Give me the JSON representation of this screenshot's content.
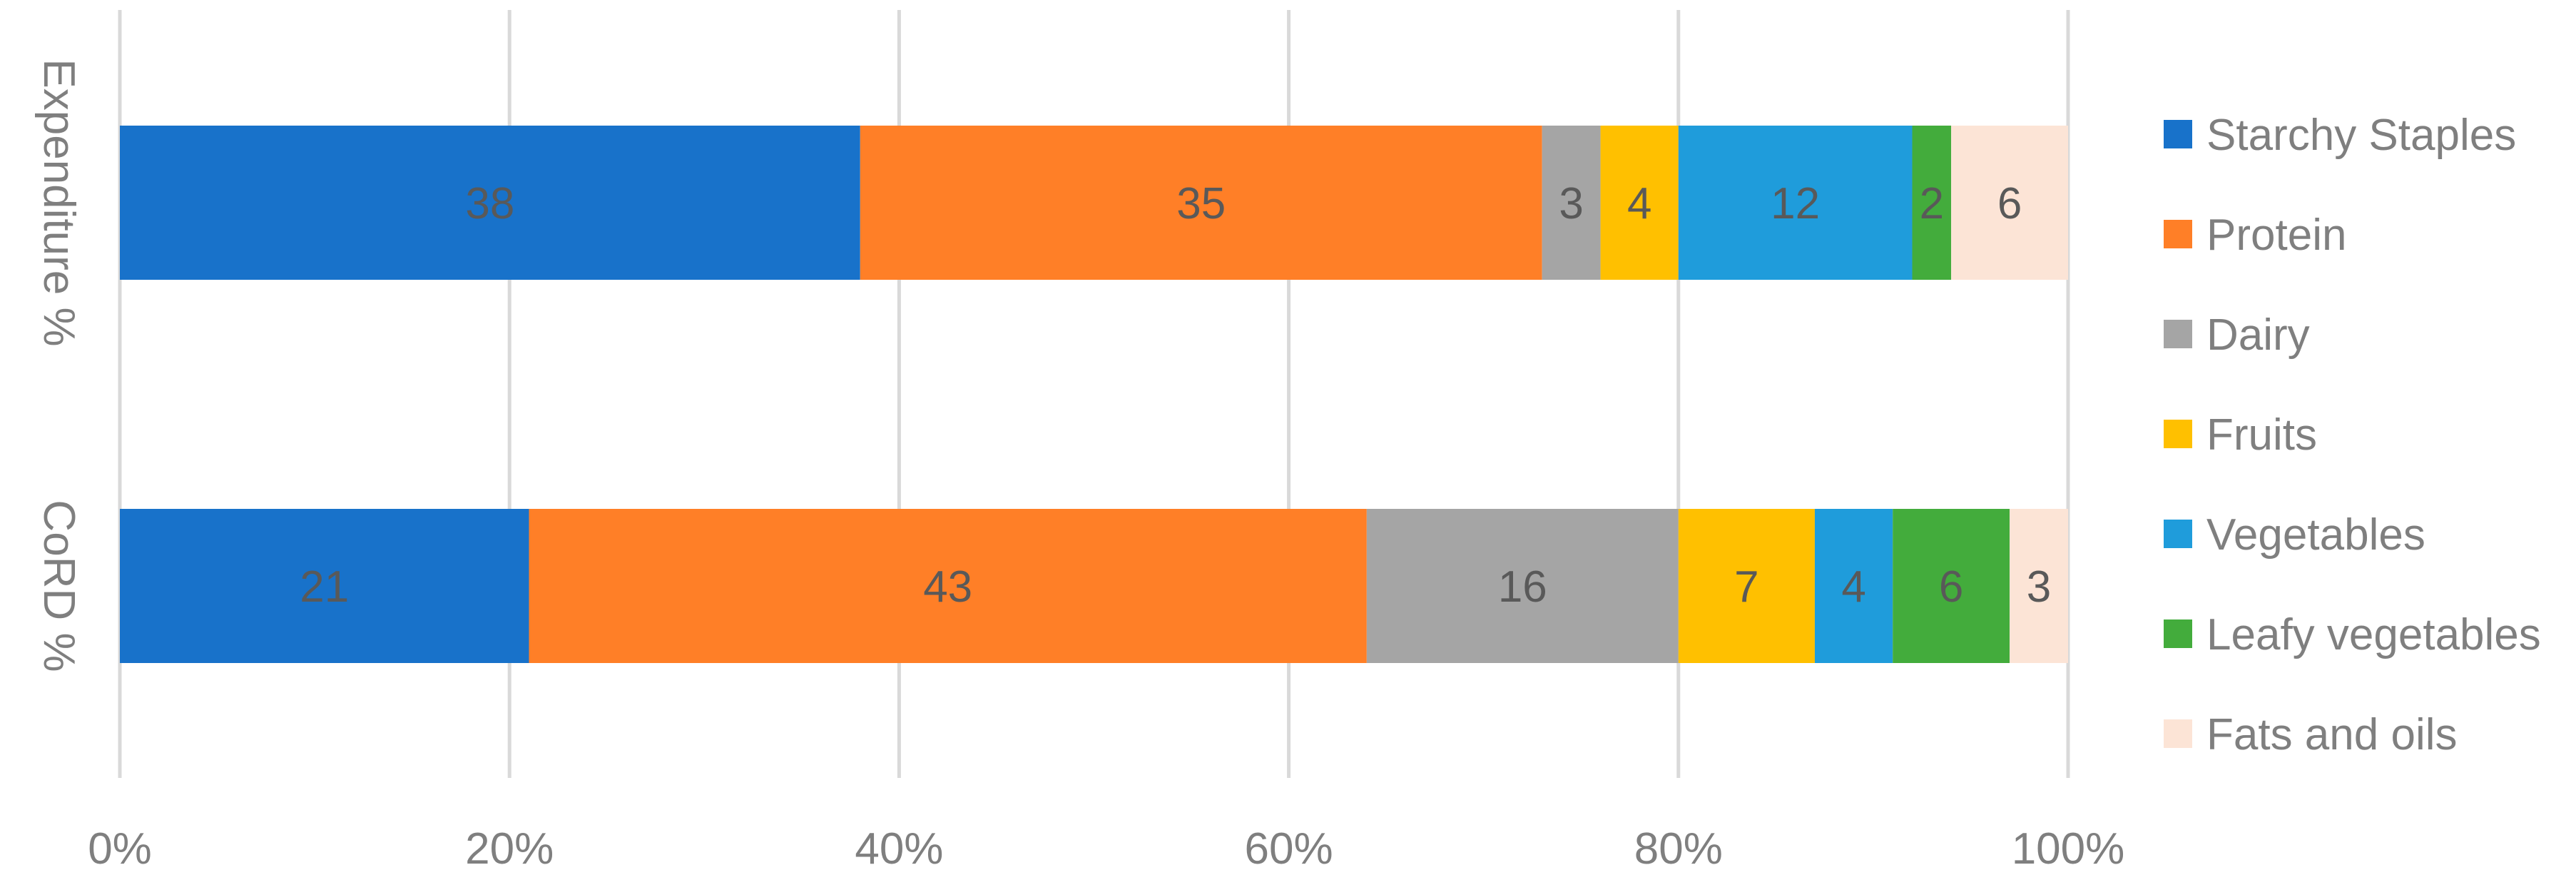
{
  "chart_data": {
    "type": "bar",
    "orientation": "horizontal",
    "stacking": "percent",
    "categories": [
      "Expenditure %",
      "CoRD %"
    ],
    "series": [
      {
        "name": "Starchy Staples",
        "color": "#1872CA",
        "values": [
          38,
          21
        ]
      },
      {
        "name": "Protein",
        "color": "#FF7F27",
        "values": [
          35,
          43
        ]
      },
      {
        "name": "Dairy",
        "color": "#A5A5A5",
        "values": [
          3,
          16
        ]
      },
      {
        "name": "Fruits",
        "color": "#FFC000",
        "values": [
          4,
          7
        ]
      },
      {
        "name": "Vegetables",
        "color": "#1F9CDB",
        "values": [
          12,
          4
        ]
      },
      {
        "name": "Leafy vegetables",
        "color": "#43AC3C",
        "values": [
          2,
          6
        ]
      },
      {
        "name": "Fats and oils",
        "color": "#FCE4D6",
        "values": [
          6,
          3
        ]
      }
    ],
    "xaxis": {
      "ticks": [
        "0%",
        "20%",
        "40%",
        "60%",
        "80%",
        "100%"
      ],
      "range": [
        0,
        100
      ]
    },
    "grid": true,
    "legend": "right",
    "data_labels": true
  }
}
